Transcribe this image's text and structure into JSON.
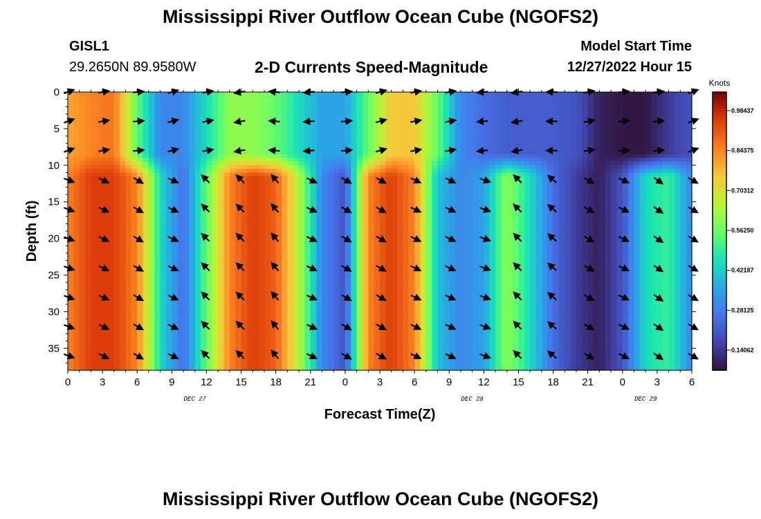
{
  "header": {
    "title": "Mississippi River Outflow Ocean Cube (NGOFS2)",
    "station": "GISL1",
    "coords": "29.2650N  89.9580W",
    "plot_title": "2-D Currents Speed-Magnitude",
    "model_start_label": "Model Start Time",
    "model_start_value": "12/27/2022 Hour 15"
  },
  "footer": {
    "title": "Mississippi River Outflow Ocean Cube (NGOFS2)"
  },
  "chart_data": {
    "type": "heatmap",
    "title": "2-D Currents Speed-Magnitude",
    "xlabel": "Forecast Time(Z)",
    "ylabel": "Depth (ft)",
    "x_ticks": [
      "0",
      "3",
      "6",
      "9",
      "12",
      "15",
      "18",
      "21",
      "0",
      "3",
      "6",
      "9",
      "12",
      "15",
      "18",
      "21",
      "0",
      "3",
      "6"
    ],
    "date_labels": [
      {
        "label": "DEC 27",
        "at_hour": 11
      },
      {
        "label": "DEC 28",
        "at_hour": 35
      },
      {
        "label": "DEC 29",
        "at_hour": 50
      }
    ],
    "xlim_hours": [
      0,
      54
    ],
    "y_ticks": [
      0,
      5,
      10,
      15,
      20,
      25,
      30,
      35
    ],
    "ylim": [
      0,
      38
    ],
    "y_inverted": true,
    "colorbar": {
      "unit": "Knots",
      "range": [
        0.07,
        1.05
      ],
      "tick_labels": [
        "0.98437",
        "0.84375",
        "0.70312",
        "0.56250",
        "0.42187",
        "0.28125",
        "0.14062"
      ],
      "tick_values": [
        0.98437,
        0.84375,
        0.70312,
        0.5625,
        0.42187,
        0.28125,
        0.14062
      ]
    },
    "surface_layer": {
      "depth_range_ft": [
        0,
        10
      ],
      "hours": [
        0,
        2,
        4,
        6,
        8,
        10,
        12,
        14,
        16,
        18,
        20,
        22,
        24,
        26,
        28,
        30,
        32,
        34,
        36,
        38,
        40,
        42,
        44,
        46,
        48,
        50,
        52,
        54
      ],
      "speed_knots": [
        0.8,
        0.85,
        0.87,
        0.55,
        0.3,
        0.3,
        0.45,
        0.6,
        0.6,
        0.55,
        0.45,
        0.35,
        0.35,
        0.55,
        0.75,
        0.75,
        0.55,
        0.3,
        0.25,
        0.22,
        0.22,
        0.22,
        0.2,
        0.1,
        0.08,
        0.08,
        0.15,
        0.2
      ]
    },
    "deep_layer": {
      "depth_range_ft": [
        10,
        38
      ],
      "hours": [
        0,
        2,
        4,
        6,
        8,
        10,
        12,
        14,
        16,
        18,
        20,
        22,
        24,
        26,
        28,
        30,
        32,
        34,
        36,
        38,
        40,
        42,
        44,
        46,
        48,
        50,
        52,
        54
      ],
      "speed_knots": [
        0.85,
        0.95,
        0.95,
        0.85,
        0.45,
        0.25,
        0.55,
        0.85,
        0.95,
        0.9,
        0.65,
        0.3,
        0.2,
        0.85,
        0.95,
        0.85,
        0.4,
        0.3,
        0.35,
        0.6,
        0.45,
        0.25,
        0.15,
        0.1,
        0.2,
        0.45,
        0.5,
        0.3
      ]
    },
    "vector_depths_ft": [
      0,
      4,
      8,
      12,
      16,
      20,
      24,
      28,
      32,
      36
    ],
    "vector_hours": [
      0,
      3,
      6,
      9,
      12,
      15,
      18,
      21,
      24,
      27,
      30,
      33,
      36,
      39,
      42,
      45,
      48,
      51,
      54
    ],
    "surface_vector_direction_deg": [
      20,
      10,
      5,
      15,
      10,
      190,
      175,
      185,
      5,
      15,
      10,
      10,
      185,
      190,
      180,
      10,
      5,
      5,
      20
    ],
    "deep_vector_direction_deg": [
      -20,
      -25,
      -30,
      -25,
      135,
      135,
      130,
      -25,
      -30,
      -30,
      -25,
      -25,
      -20,
      135,
      140,
      -30,
      -25,
      -35,
      -30
    ]
  }
}
